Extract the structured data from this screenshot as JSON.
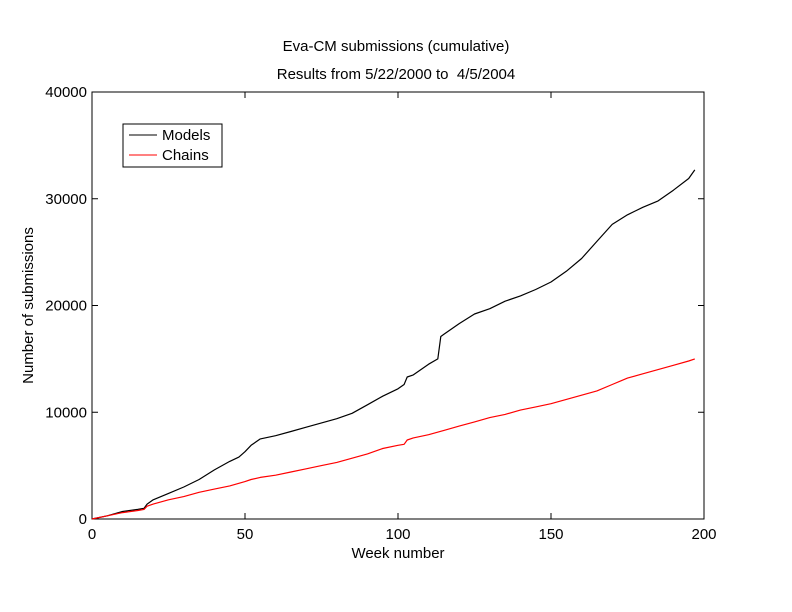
{
  "chart_data": {
    "type": "line",
    "title": "Eva-CM submissions (cumulative)",
    "subtitle": "Results from 5/22/2000 to  4/5/2004",
    "xlabel": "Week number",
    "ylabel": "Number of submissions",
    "xlim": [
      0,
      200
    ],
    "ylim": [
      0,
      40000
    ],
    "xticks": [
      0,
      50,
      100,
      150,
      200
    ],
    "yticks": [
      0,
      10000,
      20000,
      30000,
      40000
    ],
    "grid": false,
    "legend_position": "top-left",
    "series": [
      {
        "name": "Models",
        "color": "#000000",
        "x": [
          0,
          5,
          10,
          15,
          17,
          18,
          20,
          25,
          30,
          35,
          40,
          45,
          48,
          50,
          52,
          55,
          60,
          65,
          70,
          75,
          80,
          85,
          90,
          95,
          100,
          102,
          103,
          105,
          110,
          113,
          114,
          115,
          120,
          125,
          130,
          135,
          140,
          145,
          150,
          155,
          160,
          165,
          170,
          175,
          180,
          185,
          190,
          195,
          197
        ],
        "values": [
          0,
          300,
          700,
          900,
          1000,
          1400,
          1800,
          2400,
          3000,
          3700,
          4600,
          5400,
          5800,
          6300,
          6900,
          7500,
          7800,
          8200,
          8600,
          9000,
          9400,
          9900,
          10700,
          11500,
          12200,
          12600,
          13300,
          13500,
          14500,
          15000,
          17100,
          17300,
          18300,
          19200,
          19700,
          20400,
          20900,
          21500,
          22200,
          23200,
          24400,
          26000,
          27600,
          28500,
          29200,
          29800,
          30800,
          31900,
          32700
        ]
      },
      {
        "name": "Chains",
        "color": "#ff0000",
        "x": [
          0,
          5,
          10,
          15,
          17,
          18,
          20,
          25,
          30,
          35,
          40,
          45,
          50,
          52,
          55,
          60,
          65,
          70,
          75,
          80,
          85,
          90,
          95,
          100,
          102,
          103,
          105,
          110,
          115,
          120,
          125,
          130,
          135,
          140,
          145,
          150,
          155,
          160,
          165,
          170,
          175,
          180,
          185,
          190,
          195,
          197
        ],
        "values": [
          0,
          300,
          600,
          800,
          900,
          1200,
          1400,
          1800,
          2100,
          2500,
          2800,
          3100,
          3500,
          3700,
          3900,
          4100,
          4400,
          4700,
          5000,
          5300,
          5700,
          6100,
          6600,
          6900,
          7000,
          7400,
          7600,
          7900,
          8300,
          8700,
          9100,
          9500,
          9800,
          10200,
          10500,
          10800,
          11200,
          11600,
          12000,
          12600,
          13200,
          13600,
          14000,
          14400,
          14800,
          15000
        ]
      }
    ]
  }
}
